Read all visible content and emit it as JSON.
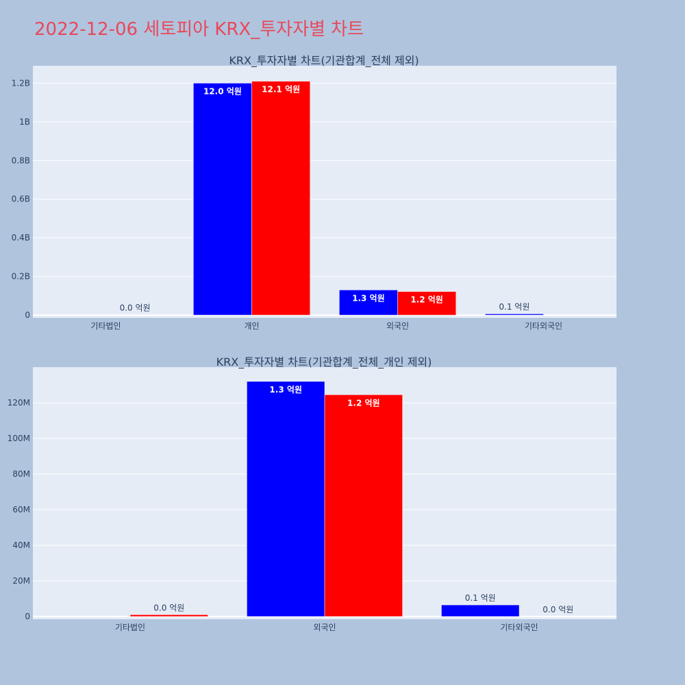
{
  "page": {
    "title": "2022-12-06 세토피아 KRX_투자자별 차트"
  },
  "chart_data": [
    {
      "type": "bar",
      "title": "KRX_투자자별 차트(기관합계_전체 제외)",
      "categories": [
        "기타법인",
        "개인",
        "외국인",
        "기타외국인"
      ],
      "series": [
        {
          "color": "#0000ff",
          "values": [
            0,
            1200000000,
            130000000,
            6500000
          ],
          "labels": [
            "",
            "12.0 억원",
            "1.3 억원",
            "0.1 억원"
          ]
        },
        {
          "color": "#ff0000",
          "values": [
            1000000,
            1210000000,
            122000000,
            0
          ],
          "labels": [
            "0.0 억원",
            "12.1 억원",
            "1.2 억원",
            ""
          ]
        }
      ],
      "ylim": [
        0,
        1290000000
      ],
      "y_ticks": [
        0,
        200000000,
        400000000,
        600000000,
        800000000,
        1000000000,
        1200000000
      ],
      "y_tick_labels": [
        "0",
        "0.2B",
        "0.4B",
        "0.6B",
        "0.8B",
        "1B",
        "1.2B"
      ],
      "grid": true,
      "legend": "none"
    },
    {
      "type": "bar",
      "title": "KRX_투자자별 차트(기관합계_전체_개인 제외)",
      "categories": [
        "기타법인",
        "외국인",
        "기타외국인"
      ],
      "series": [
        {
          "color": "#0000ff",
          "values": [
            0,
            132000000,
            6500000
          ],
          "labels": [
            "",
            "1.3 억원",
            "0.1 억원"
          ]
        },
        {
          "color": "#ff0000",
          "values": [
            1000000,
            124500000,
            0
          ],
          "labels": [
            "0.0 억원",
            "1.2 억원",
            "0.0 억원"
          ]
        }
      ],
      "ylim": [
        0,
        140000000
      ],
      "y_ticks": [
        0,
        20000000,
        40000000,
        60000000,
        80000000,
        100000000,
        120000000
      ],
      "y_tick_labels": [
        "0",
        "20M",
        "40M",
        "60M",
        "80M",
        "100M",
        "120M"
      ],
      "grid": true,
      "legend": "none"
    }
  ]
}
